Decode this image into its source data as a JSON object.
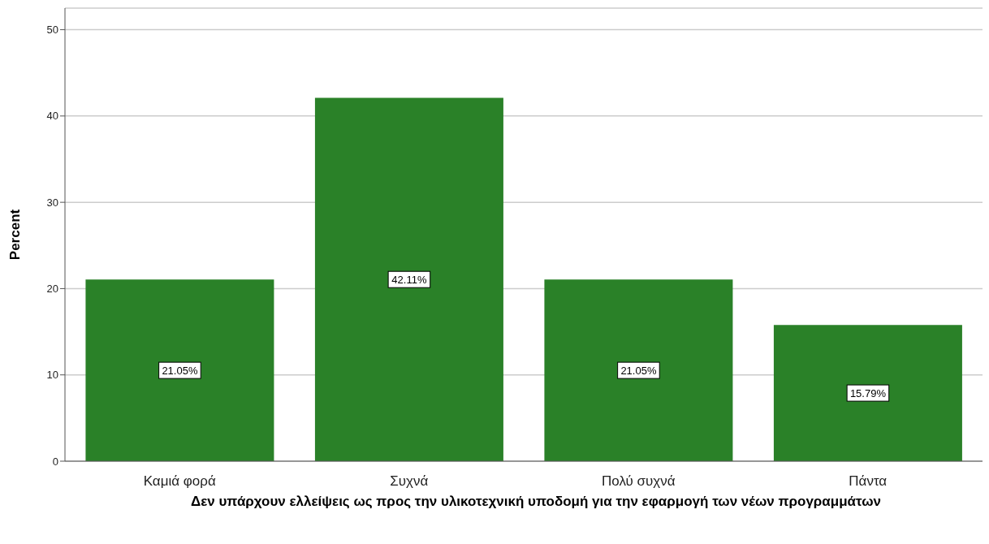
{
  "chart_data": {
    "type": "bar",
    "xlabel": "Δεν υπάρχουν ελλείψεις ως προς την υλικοτεχνική υποδομή για την εφαρμογή των νέων προγραμμάτων",
    "ylabel": "Percent",
    "categories": [
      "Καμιά φορά",
      "Συχνά",
      "Πολύ συχνά",
      "Πάντα"
    ],
    "values": [
      21.05,
      42.11,
      21.05,
      15.79
    ],
    "value_labels": [
      "21.05%",
      "42.11%",
      "21.05%",
      "15.79%"
    ],
    "color": "#2a8128",
    "ylim": [
      0,
      52.5
    ],
    "yticks": [
      0,
      10,
      20,
      30,
      40,
      50
    ],
    "grid": "y",
    "legend": false
  }
}
